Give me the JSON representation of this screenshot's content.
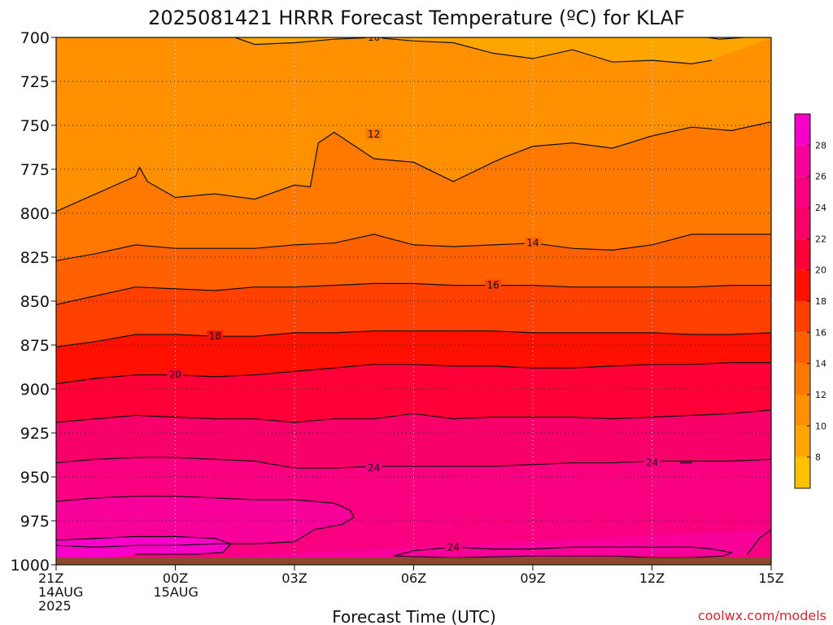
{
  "chart_data": {
    "type": "filled-contour",
    "title": "2025081421 HRRR Forecast Temperature (ºC) for KLAF",
    "xlabel": "Forecast Time (UTC)",
    "ylabel": "",
    "credit": "coolwx.com/models",
    "x_ticks": [
      {
        "hour": 0,
        "lines": [
          "21Z",
          "14AUG",
          "2025"
        ]
      },
      {
        "hour": 3,
        "lines": [
          "00Z",
          "15AUG"
        ]
      },
      {
        "hour": 6,
        "lines": [
          "03Z"
        ]
      },
      {
        "hour": 9,
        "lines": [
          "06Z"
        ]
      },
      {
        "hour": 12,
        "lines": [
          "09Z"
        ]
      },
      {
        "hour": 15,
        "lines": [
          "12Z"
        ]
      },
      {
        "hour": 18,
        "lines": [
          "15Z"
        ]
      }
    ],
    "xlim_hours": [
      0,
      18
    ],
    "y_ticks": [
      700,
      725,
      750,
      775,
      800,
      825,
      850,
      875,
      900,
      925,
      950,
      975,
      1000
    ],
    "ylim_hpa": [
      700,
      1000
    ],
    "y_scale": "inverted-pressure",
    "grid": "dotted",
    "colorbar": {
      "placement": "right",
      "labels": [
        8,
        10,
        12,
        14,
        16,
        18,
        20,
        22,
        24,
        26,
        28
      ],
      "bins": [
        {
          "from": 6,
          "to": 8,
          "color": "#FFC000"
        },
        {
          "from": 8,
          "to": 10,
          "color": "#FFA500"
        },
        {
          "from": 10,
          "to": 12,
          "color": "#FF9000"
        },
        {
          "from": 12,
          "to": 14,
          "color": "#FF7800"
        },
        {
          "from": 14,
          "to": 16,
          "color": "#FF6000"
        },
        {
          "from": 16,
          "to": 18,
          "color": "#FF4000"
        },
        {
          "from": 18,
          "to": 20,
          "color": "#FF1000"
        },
        {
          "from": 20,
          "to": 22,
          "color": "#FF0038"
        },
        {
          "from": 22,
          "to": 24,
          "color": "#F8006A"
        },
        {
          "from": 24,
          "to": 26,
          "color": "#F80080"
        },
        {
          "from": 26,
          "to": 28,
          "color": "#F8009A"
        },
        {
          "from": 28,
          "to": 30,
          "color": "#F800C8"
        }
      ]
    },
    "contours": [
      {
        "level": 10,
        "hours": [
          4.5,
          5,
          6,
          7,
          8,
          9,
          10,
          11,
          12,
          13,
          14,
          15,
          16,
          16.5
        ],
        "hpa": [
          700,
          704,
          703,
          701,
          700,
          702,
          703,
          709,
          712,
          707,
          714,
          713,
          715,
          713
        ],
        "label": {
          "hour": 8,
          "hpa": 700
        }
      },
      {
        "level": 8,
        "hours": [
          16.4,
          16.7,
          17.3
        ],
        "hpa": [
          700,
          701,
          700
        ]
      },
      {
        "level": 12,
        "hours": [
          0,
          1,
          2,
          2.1,
          2.3,
          3,
          4,
          5,
          6,
          6.4,
          6.6,
          7,
          8,
          9,
          10,
          11,
          11.3,
          12,
          13,
          14,
          15,
          16,
          17,
          18
        ],
        "hpa": [
          799,
          789,
          779,
          774,
          782,
          791,
          789,
          792,
          784,
          785,
          760,
          754,
          769,
          771,
          782,
          771,
          768,
          762,
          760,
          763,
          756,
          751,
          753,
          748
        ],
        "label": {
          "hour": 8,
          "hpa": 755
        }
      },
      {
        "level": 14,
        "hours": [
          0,
          1,
          2,
          3,
          4,
          5,
          6,
          7,
          8,
          9,
          10,
          11,
          12,
          13,
          14,
          15,
          16,
          17,
          18
        ],
        "hpa": [
          827,
          823,
          818,
          820,
          820,
          820,
          818,
          817,
          812,
          818,
          819,
          818,
          817,
          820,
          821,
          818,
          812,
          812,
          812
        ],
        "label": {
          "hour": 12,
          "hpa": 817
        }
      },
      {
        "level": 16,
        "hours": [
          0,
          1,
          2,
          3,
          4,
          5,
          6,
          7,
          8,
          9,
          10,
          11,
          12,
          13,
          14,
          15,
          16,
          17,
          18
        ],
        "hpa": [
          852,
          847,
          842,
          843,
          844,
          842,
          842,
          841,
          840,
          840,
          841,
          841,
          841,
          842,
          842,
          842,
          842,
          841,
          841
        ],
        "label": {
          "hour": 11,
          "hpa": 841
        }
      },
      {
        "level": 18,
        "hours": [
          0,
          1,
          2,
          3,
          4,
          5,
          6,
          7,
          8,
          9,
          10,
          11,
          12,
          13,
          14,
          15,
          16,
          17,
          18
        ],
        "hpa": [
          876,
          873,
          869,
          869,
          870,
          870,
          868,
          868,
          867,
          867,
          867,
          867,
          868,
          868,
          868,
          868,
          869,
          869,
          868
        ],
        "label": {
          "hour": 4,
          "hpa": 870
        }
      },
      {
        "level": 20,
        "hours": [
          0,
          1,
          2,
          3,
          4,
          5,
          6,
          7,
          8,
          9,
          10,
          11,
          12,
          13,
          14,
          15,
          16,
          17,
          18
        ],
        "hpa": [
          897,
          894,
          892,
          892,
          893,
          892,
          890,
          888,
          886,
          886,
          887,
          887,
          888,
          888,
          887,
          886,
          886,
          885,
          885
        ],
        "label": {
          "hour": 3,
          "hpa": 892
        }
      },
      {
        "level": 22,
        "hours": [
          0,
          1,
          2,
          3,
          4,
          5,
          6,
          7,
          8,
          9,
          10,
          11,
          12,
          13,
          14,
          15,
          16,
          17,
          18
        ],
        "hpa": [
          919,
          917,
          915,
          916,
          917,
          917,
          919,
          917,
          917,
          914,
          917,
          916,
          916,
          916,
          917,
          916,
          915,
          914,
          912
        ],
        "label": null
      },
      {
        "level": 24,
        "hours": [
          0,
          1,
          2,
          3,
          4,
          5,
          6,
          7,
          8,
          9,
          10,
          11,
          12,
          13,
          14,
          15,
          16,
          17,
          18
        ],
        "hpa": [
          942,
          940,
          939,
          939,
          940,
          941,
          945,
          945,
          944,
          944,
          944,
          944,
          943,
          942,
          942,
          941,
          941,
          941,
          940
        ],
        "label": {
          "hour": 8,
          "hpa": 945
        }
      },
      {
        "level": 24,
        "hours": [
          15.7,
          16
        ],
        "hpa": [
          942,
          942
        ],
        "label": {
          "hour": 15,
          "hpa": 942
        }
      },
      {
        "level": 26,
        "hours": [
          0,
          1,
          2,
          3,
          4,
          5,
          6,
          7,
          7.4,
          7.5,
          7.2,
          6.5,
          6,
          5,
          4,
          3,
          2,
          1,
          0
        ],
        "hpa": [
          964,
          962,
          961,
          961,
          962,
          963,
          963,
          965,
          969,
          973,
          977,
          980,
          987,
          988,
          988,
          989,
          989,
          990,
          989
        ],
        "label": null
      },
      {
        "level": 28,
        "hours": [
          0,
          1,
          2,
          3,
          4,
          4.4,
          4.2,
          3.5,
          3,
          2
        ],
        "hpa": [
          986,
          985,
          984,
          984,
          985,
          988,
          993,
          994,
          994,
          994
        ],
        "label": null
      },
      {
        "level": 24,
        "hours": [
          8.5,
          9,
          10,
          11,
          12,
          13,
          14,
          15,
          16,
          16.5,
          17,
          16.8,
          16,
          15,
          14,
          12,
          10,
          8.5
        ],
        "hpa": [
          995,
          992,
          990,
          991,
          991,
          990,
          990,
          990,
          990,
          991,
          993,
          995,
          996,
          996,
          995,
          995,
          996,
          995
        ],
        "label": {
          "hour": 10,
          "hpa": 990
        }
      },
      {
        "level": 26,
        "hours": [
          17.4,
          17.7,
          18
        ],
        "hpa": [
          994,
          985,
          980
        ],
        "label": null
      }
    ],
    "terrain_hpa": 996
  }
}
